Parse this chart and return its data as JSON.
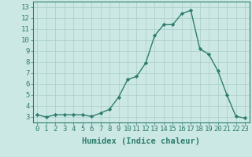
{
  "x": [
    0,
    1,
    2,
    3,
    4,
    5,
    6,
    7,
    8,
    9,
    10,
    11,
    12,
    13,
    14,
    15,
    16,
    17,
    18,
    19,
    20,
    21,
    22,
    23
  ],
  "y": [
    3.2,
    3.0,
    3.2,
    3.2,
    3.2,
    3.2,
    3.05,
    3.35,
    3.7,
    4.8,
    6.4,
    6.7,
    7.9,
    10.4,
    11.4,
    11.4,
    12.4,
    12.7,
    9.2,
    8.7,
    7.2,
    5.0,
    3.05,
    2.9
  ],
  "line_color": "#2e7d6e",
  "marker": "D",
  "marker_size": 2.2,
  "bg_color": "#cce8e4",
  "grid_color": "#aaccc8",
  "xlabel": "Humidex (Indice chaleur)",
  "xlim": [
    -0.5,
    23.5
  ],
  "ylim": [
    2.5,
    13.5
  ],
  "yticks": [
    3,
    4,
    5,
    6,
    7,
    8,
    9,
    10,
    11,
    12,
    13
  ],
  "xticks": [
    0,
    1,
    2,
    3,
    4,
    5,
    6,
    7,
    8,
    9,
    10,
    11,
    12,
    13,
    14,
    15,
    16,
    17,
    18,
    19,
    20,
    21,
    22,
    23
  ],
  "tick_color": "#2e7d6e",
  "label_color": "#2e7d6e",
  "xlabel_fontsize": 7.5,
  "tick_fontsize": 6.5,
  "line_width": 1.0
}
